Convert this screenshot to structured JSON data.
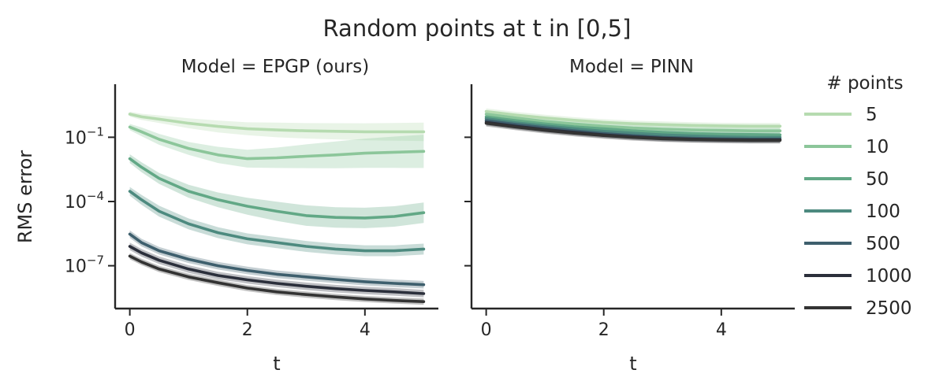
{
  "chart_data": {
    "type": "line",
    "title": "Random points at t in [0,5]",
    "ylabel": "RMS error",
    "yscale": "log",
    "y_ticks": [
      {
        "value": 0.1,
        "base": "10",
        "exp": "−1"
      },
      {
        "value": 0.0001,
        "base": "10",
        "exp": "−4"
      },
      {
        "value": 1e-07,
        "base": "10",
        "exp": "−7"
      }
    ],
    "x_ticks": [
      0,
      2,
      4
    ],
    "xlim": [
      -0.25,
      5.25
    ],
    "ylim": [
      1e-09,
      30
    ],
    "legend": {
      "title": "# points",
      "placement": "right"
    },
    "legend_labels": [
      "5",
      "10",
      "50",
      "100",
      "500",
      "1000",
      "2500"
    ],
    "colors": [
      "#b6dbb0",
      "#8cc69a",
      "#62a886",
      "#4d8a7f",
      "#3e5f6d",
      "#2b2f3b",
      "#333333"
    ],
    "panels": [
      {
        "subtitle": "Model = EPGP (ours)",
        "xlabel": "t",
        "x": [
          0,
          0.2,
          0.5,
          1,
          1.5,
          2,
          2.5,
          3,
          3.5,
          4,
          4.5,
          5
        ],
        "series": [
          {
            "values": [
              1.2,
              0.9,
              0.7,
              0.45,
              0.32,
              0.25,
              0.22,
              0.2,
              0.19,
              0.18,
              0.18,
              0.18
            ],
            "band": [
              1.3,
              1.4,
              1.5,
              1.7,
              1.9,
              2.0,
              2.2,
              2.3,
              2.4,
              2.5,
              2.6,
              2.7
            ]
          },
          {
            "values": [
              0.3,
              0.18,
              0.08,
              0.03,
              0.015,
              0.01,
              0.011,
              0.013,
              0.015,
              0.018,
              0.02,
              0.022
            ],
            "band": [
              1.4,
              1.6,
              1.8,
              2.0,
              2.4,
              2.6,
              3,
              3.6,
              4.2,
              4.8,
              5.4,
              6
            ]
          },
          {
            "values": [
              0.01,
              0.004,
              0.0012,
              0.0003,
              0.00012,
              6e-05,
              3.5e-05,
              2.2e-05,
              1.8e-05,
              1.7e-05,
              2e-05,
              3e-05
            ],
            "band": [
              1.6,
              1.7,
              1.8,
              2.0,
              2.2,
              2.5,
              2.8,
              3,
              3,
              3,
              3,
              3
            ]
          },
          {
            "values": [
              0.0003,
              0.00012,
              3.5e-05,
              9e-06,
              3.5e-06,
              1.8e-06,
              1.2e-06,
              8e-07,
              6e-07,
              5e-07,
              5e-07,
              6e-07
            ],
            "band": [
              1.6,
              1.7,
              1.8,
              1.8,
              1.8,
              1.8,
              1.8,
              1.8,
              1.8,
              1.8,
              1.8,
              1.8
            ]
          },
          {
            "values": [
              3e-06,
              1.2e-06,
              5e-07,
              2e-07,
              1e-07,
              6e-08,
              4e-08,
              3e-08,
              2.3e-08,
              1.8e-08,
              1.5e-08,
              1.3e-08
            ],
            "band": [
              1.5,
              1.5,
              1.5,
              1.5,
              1.5,
              1.5,
              1.5,
              1.5,
              1.5,
              1.5,
              1.5,
              1.5
            ]
          },
          {
            "values": [
              8e-07,
              4e-07,
              1.8e-07,
              7e-08,
              3.5e-08,
              2.2e-08,
              1.5e-08,
              1.1e-08,
              8.5e-09,
              7e-09,
              6e-09,
              5e-09
            ],
            "band": [
              1.5,
              1.5,
              1.5,
              1.5,
              1.5,
              1.5,
              1.5,
              1.5,
              1.5,
              1.5,
              1.5,
              1.5
            ]
          },
          {
            "values": [
              2.8e-07,
              1.5e-07,
              7e-08,
              3e-08,
              1.6e-08,
              9e-09,
              6e-09,
              4.5e-09,
              3.5e-09,
              2.8e-09,
              2.4e-09,
              2.1e-09
            ],
            "band": [
              1.4,
              1.4,
              1.4,
              1.4,
              1.4,
              1.4,
              1.4,
              1.4,
              1.4,
              1.4,
              1.4,
              1.4
            ]
          }
        ]
      },
      {
        "subtitle": "Model = PINN",
        "xlabel": "t",
        "x": [
          0,
          0.5,
          1,
          1.5,
          2,
          2.5,
          3,
          3.5,
          4,
          4.5,
          5
        ],
        "series": [
          {
            "values": [
              1.6,
              1.1,
              0.8,
              0.62,
              0.5,
              0.43,
              0.39,
              0.36,
              0.34,
              0.33,
              0.33
            ],
            "band": [
              1.4,
              1.4,
              1.4,
              1.4,
              1.4,
              1.4,
              1.4,
              1.4,
              1.4,
              1.4,
              1.4
            ]
          },
          {
            "values": [
              1.2,
              0.8,
              0.55,
              0.42,
              0.33,
              0.27,
              0.24,
              0.22,
              0.21,
              0.2,
              0.2
            ],
            "band": [
              1.4,
              1.4,
              1.4,
              1.4,
              1.4,
              1.4,
              1.4,
              1.4,
              1.4,
              1.4,
              1.4
            ]
          },
          {
            "values": [
              0.9,
              0.6,
              0.42,
              0.31,
              0.25,
              0.2,
              0.17,
              0.15,
              0.14,
              0.135,
              0.13
            ],
            "band": [
              1.4,
              1.4,
              1.4,
              1.4,
              1.4,
              1.4,
              1.4,
              1.4,
              1.4,
              1.4,
              1.4
            ]
          },
          {
            "values": [
              0.75,
              0.48,
              0.34,
              0.25,
              0.19,
              0.155,
              0.13,
              0.115,
              0.105,
              0.1,
              0.1
            ],
            "band": [
              1.4,
              1.4,
              1.4,
              1.4,
              1.4,
              1.4,
              1.4,
              1.4,
              1.4,
              1.4,
              1.4
            ]
          },
          {
            "values": [
              0.6,
              0.4,
              0.28,
              0.2,
              0.15,
              0.12,
              0.1,
              0.09,
              0.085,
              0.082,
              0.082
            ],
            "band": [
              1.4,
              1.4,
              1.4,
              1.4,
              1.4,
              1.4,
              1.4,
              1.4,
              1.4,
              1.4,
              1.4
            ]
          },
          {
            "values": [
              0.5,
              0.33,
              0.23,
              0.17,
              0.13,
              0.105,
              0.09,
              0.082,
              0.078,
              0.076,
              0.076
            ],
            "band": [
              1.4,
              1.4,
              1.4,
              1.4,
              1.4,
              1.4,
              1.4,
              1.4,
              1.4,
              1.4,
              1.4
            ]
          },
          {
            "values": [
              0.45,
              0.3,
              0.21,
              0.155,
              0.12,
              0.098,
              0.085,
              0.078,
              0.074,
              0.072,
              0.072
            ],
            "band": [
              1.4,
              1.4,
              1.4,
              1.4,
              1.4,
              1.4,
              1.4,
              1.4,
              1.4,
              1.4,
              1.4
            ]
          }
        ]
      }
    ]
  }
}
